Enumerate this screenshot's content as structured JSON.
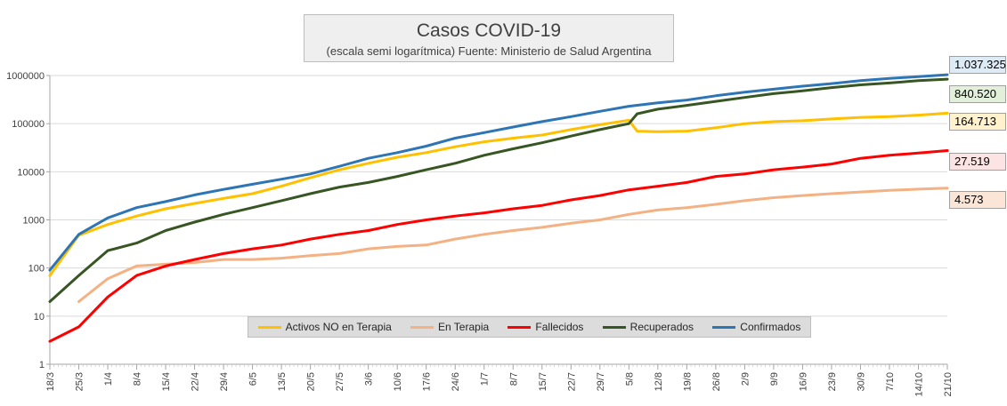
{
  "chart_data": {
    "type": "line",
    "title": "Casos COVID-19",
    "subtitle": "(escala semi logarítmica) Fuente: Ministerio de Salud Argentina",
    "y_scale": "log",
    "ylim": [
      1,
      1000000
    ],
    "y_ticks": [
      "1",
      "10",
      "100",
      "1000",
      "10000",
      "100000",
      "1000000"
    ],
    "grid": "horizontal",
    "legend_position": "bottom",
    "x_ticks": [
      "18/3",
      "25/3",
      "1/4",
      "8/4",
      "15/4",
      "22/4",
      "29/4",
      "6/5",
      "13/5",
      "20/5",
      "27/5",
      "3/6",
      "10/6",
      "17/6",
      "24/6",
      "1/7",
      "8/7",
      "15/7",
      "22/7",
      "29/7",
      "5/8",
      "12/8",
      "19/8",
      "26/8",
      "2/9",
      "9/9",
      "16/9",
      "23/9",
      "30/9",
      "7/10",
      "14/10",
      "21/10"
    ],
    "x_start": "18/3",
    "x_end": "21/10",
    "series": [
      {
        "name": "Activos NO en Terapia",
        "color": "#ffc000",
        "end_label": "164.713",
        "end_label_bg": "#fff2cc",
        "points": [
          [
            "18/3",
            70
          ],
          [
            "25/3",
            480
          ],
          [
            "1/4",
            800
          ],
          [
            "8/4",
            1200
          ],
          [
            "15/4",
            1700
          ],
          [
            "22/4",
            2200
          ],
          [
            "29/4",
            2800
          ],
          [
            "6/5",
            3500
          ],
          [
            "13/5",
            5000
          ],
          [
            "20/5",
            7500
          ],
          [
            "27/5",
            11000
          ],
          [
            "3/6",
            15000
          ],
          [
            "10/6",
            20000
          ],
          [
            "17/6",
            25000
          ],
          [
            "24/6",
            33000
          ],
          [
            "1/7",
            42000
          ],
          [
            "8/7",
            50000
          ],
          [
            "15/7",
            58000
          ],
          [
            "22/7",
            75000
          ],
          [
            "29/7",
            95000
          ],
          [
            "5/8",
            118000
          ],
          [
            "7/8",
            70000
          ],
          [
            "12/8",
            68000
          ],
          [
            "19/8",
            70000
          ],
          [
            "26/8",
            82000
          ],
          [
            "2/9",
            100000
          ],
          [
            "9/9",
            110000
          ],
          [
            "16/9",
            115000
          ],
          [
            "23/9",
            125000
          ],
          [
            "30/9",
            135000
          ],
          [
            "7/10",
            140000
          ],
          [
            "14/10",
            150000
          ],
          [
            "21/10",
            164713
          ]
        ]
      },
      {
        "name": "En Terapia",
        "color": "#f4b183",
        "end_label": "4.573",
        "end_label_bg": "#fbe5d6",
        "points": [
          [
            "25/3",
            20
          ],
          [
            "1/4",
            60
          ],
          [
            "8/4",
            110
          ],
          [
            "15/4",
            120
          ],
          [
            "22/4",
            130
          ],
          [
            "29/4",
            150
          ],
          [
            "6/5",
            150
          ],
          [
            "13/5",
            160
          ],
          [
            "20/5",
            180
          ],
          [
            "27/5",
            200
          ],
          [
            "3/6",
            250
          ],
          [
            "10/6",
            280
          ],
          [
            "17/6",
            300
          ],
          [
            "24/6",
            400
          ],
          [
            "1/7",
            500
          ],
          [
            "8/7",
            600
          ],
          [
            "15/7",
            700
          ],
          [
            "22/7",
            850
          ],
          [
            "29/7",
            1000
          ],
          [
            "5/8",
            1300
          ],
          [
            "12/8",
            1600
          ],
          [
            "19/8",
            1800
          ],
          [
            "26/8",
            2100
          ],
          [
            "2/9",
            2500
          ],
          [
            "9/9",
            2900
          ],
          [
            "16/9",
            3200
          ],
          [
            "23/9",
            3500
          ],
          [
            "30/9",
            3800
          ],
          [
            "7/10",
            4100
          ],
          [
            "14/10",
            4350
          ],
          [
            "21/10",
            4573
          ]
        ]
      },
      {
        "name": "Fallecidos",
        "color": "#ff0000",
        "end_label": "27.519",
        "end_label_bg": "#fce4e4",
        "points": [
          [
            "18/3",
            3
          ],
          [
            "25/3",
            6
          ],
          [
            "1/4",
            25
          ],
          [
            "8/4",
            70
          ],
          [
            "15/4",
            110
          ],
          [
            "22/4",
            150
          ],
          [
            "29/4",
            200
          ],
          [
            "6/5",
            250
          ],
          [
            "13/5",
            300
          ],
          [
            "20/5",
            400
          ],
          [
            "27/5",
            500
          ],
          [
            "3/6",
            600
          ],
          [
            "10/6",
            800
          ],
          [
            "17/6",
            1000
          ],
          [
            "24/6",
            1200
          ],
          [
            "1/7",
            1400
          ],
          [
            "8/7",
            1700
          ],
          [
            "15/7",
            2000
          ],
          [
            "22/7",
            2600
          ],
          [
            "29/7",
            3200
          ],
          [
            "5/8",
            4200
          ],
          [
            "12/8",
            5000
          ],
          [
            "19/8",
            6000
          ],
          [
            "26/8",
            8000
          ],
          [
            "2/9",
            9000
          ],
          [
            "9/9",
            11000
          ],
          [
            "16/9",
            12500
          ],
          [
            "23/9",
            14500
          ],
          [
            "30/9",
            19000
          ],
          [
            "7/10",
            22000
          ],
          [
            "14/10",
            24500
          ],
          [
            "21/10",
            27519
          ]
        ]
      },
      {
        "name": "Recuperados",
        "color": "#375623",
        "end_label": "840.520",
        "end_label_bg": "#e2efda",
        "points": [
          [
            "18/3",
            20
          ],
          [
            "25/3",
            70
          ],
          [
            "1/4",
            230
          ],
          [
            "8/4",
            330
          ],
          [
            "15/4",
            600
          ],
          [
            "22/4",
            900
          ],
          [
            "29/4",
            1300
          ],
          [
            "6/5",
            1800
          ],
          [
            "13/5",
            2500
          ],
          [
            "20/5",
            3500
          ],
          [
            "27/5",
            4800
          ],
          [
            "3/6",
            6000
          ],
          [
            "10/6",
            8000
          ],
          [
            "17/6",
            11000
          ],
          [
            "24/6",
            15000
          ],
          [
            "1/7",
            22000
          ],
          [
            "8/7",
            30000
          ],
          [
            "15/7",
            40000
          ],
          [
            "22/7",
            55000
          ],
          [
            "29/7",
            75000
          ],
          [
            "5/8",
            100000
          ],
          [
            "7/8",
            160000
          ],
          [
            "12/8",
            200000
          ],
          [
            "19/8",
            240000
          ],
          [
            "26/8",
            290000
          ],
          [
            "2/9",
            350000
          ],
          [
            "9/9",
            420000
          ],
          [
            "16/9",
            480000
          ],
          [
            "23/9",
            560000
          ],
          [
            "30/9",
            640000
          ],
          [
            "7/10",
            700000
          ],
          [
            "14/10",
            780000
          ],
          [
            "21/10",
            840520
          ]
        ]
      },
      {
        "name": "Confirmados",
        "color": "#2e75b6",
        "end_label": "1.037.325",
        "end_label_bg": "#ddebf7",
        "points": [
          [
            "18/3",
            90
          ],
          [
            "25/3",
            500
          ],
          [
            "1/4",
            1100
          ],
          [
            "8/4",
            1800
          ],
          [
            "15/4",
            2400
          ],
          [
            "22/4",
            3300
          ],
          [
            "29/4",
            4300
          ],
          [
            "6/5",
            5500
          ],
          [
            "13/5",
            7000
          ],
          [
            "20/5",
            9000
          ],
          [
            "27/5",
            13000
          ],
          [
            "3/6",
            19000
          ],
          [
            "10/6",
            25000
          ],
          [
            "17/6",
            34000
          ],
          [
            "24/6",
            50000
          ],
          [
            "1/7",
            65000
          ],
          [
            "8/7",
            85000
          ],
          [
            "15/7",
            110000
          ],
          [
            "22/7",
            140000
          ],
          [
            "29/7",
            180000
          ],
          [
            "5/8",
            230000
          ],
          [
            "12/8",
            270000
          ],
          [
            "19/8",
            310000
          ],
          [
            "26/8",
            380000
          ],
          [
            "2/9",
            450000
          ],
          [
            "9/9",
            520000
          ],
          [
            "16/9",
            600000
          ],
          [
            "23/9",
            680000
          ],
          [
            "30/9",
            780000
          ],
          [
            "7/10",
            870000
          ],
          [
            "14/10",
            950000
          ],
          [
            "21/10",
            1037325
          ]
        ]
      }
    ]
  }
}
